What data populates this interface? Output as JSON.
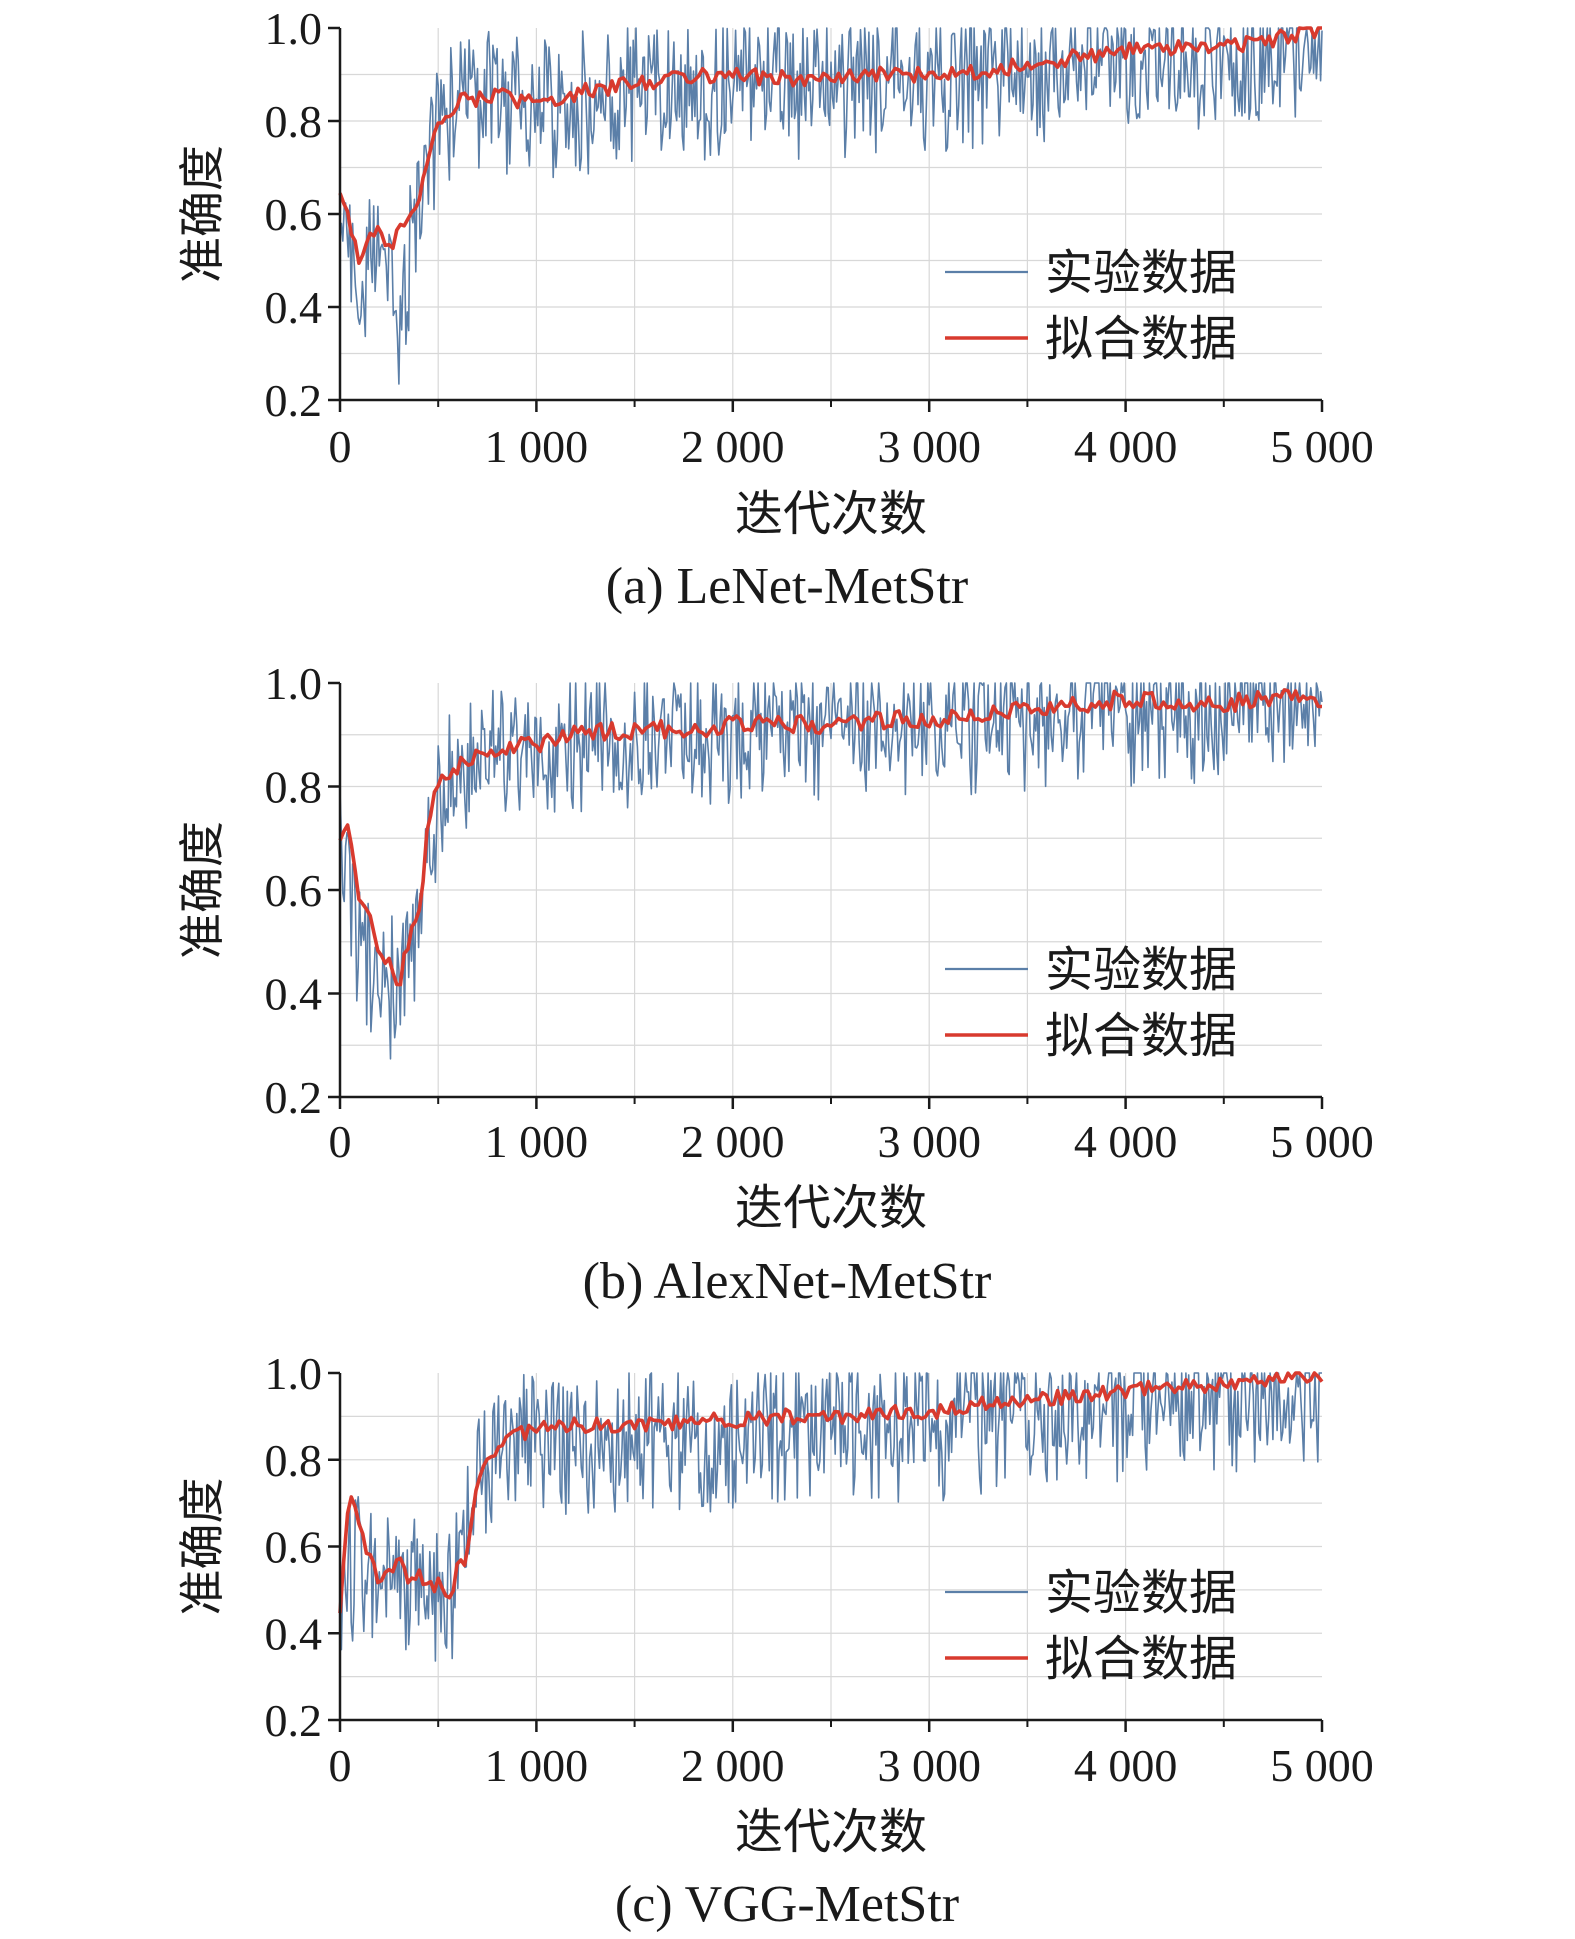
{
  "chart_data": [
    {
      "type": "line",
      "caption": "(a) LeNet-MetStr",
      "xlabel": "迭代次数",
      "ylabel": "准确度",
      "xlim": [
        0,
        5000
      ],
      "ylim": [
        0.2,
        1.0
      ],
      "x_ticks": [
        0,
        1000,
        2000,
        3000,
        4000,
        5000
      ],
      "x_tick_labels": [
        "0",
        "1 000",
        "2 000",
        "3 000",
        "4 000",
        "5 000"
      ],
      "y_ticks": [
        0.2,
        0.4,
        0.6,
        0.8,
        1.0
      ],
      "y_tick_labels": [
        "0.2",
        "0.4",
        "0.6",
        "0.8",
        "1.0"
      ],
      "grid": true,
      "legend_position": "bottom-right",
      "colors": {
        "experiment": "#5b7fa8",
        "fit": "#d83a2e"
      },
      "series": [
        {
          "name": "实验数据",
          "style": "thin-noisy",
          "x": [
            0,
            100,
            200,
            300,
            400,
            500,
            600,
            700,
            800,
            1000,
            1200,
            1500,
            2000,
            2500,
            3000,
            3500,
            4000,
            4500,
            5000
          ],
          "y": [
            0.65,
            0.48,
            0.55,
            0.4,
            0.62,
            0.82,
            0.85,
            0.86,
            0.84,
            0.84,
            0.85,
            0.88,
            0.89,
            0.9,
            0.91,
            0.93,
            0.94,
            0.97,
            0.99
          ],
          "noise_low": 0.18,
          "noise_high": 0.12
        },
        {
          "name": "拟合数据",
          "style": "thick",
          "x": [
            0,
            50,
            100,
            150,
            200,
            250,
            300,
            350,
            400,
            450,
            500,
            600,
            700,
            800,
            900,
            1000,
            1200,
            1500,
            1800,
            2000,
            2300,
            2500,
            2800,
            3000,
            3300,
            3500,
            3800,
            4000,
            4300,
            4500,
            4800,
            5000
          ],
          "y": [
            0.65,
            0.58,
            0.5,
            0.55,
            0.56,
            0.52,
            0.58,
            0.6,
            0.62,
            0.72,
            0.8,
            0.84,
            0.85,
            0.86,
            0.84,
            0.84,
            0.86,
            0.88,
            0.9,
            0.9,
            0.89,
            0.89,
            0.9,
            0.9,
            0.91,
            0.92,
            0.94,
            0.95,
            0.96,
            0.96,
            0.98,
            1.0
          ]
        }
      ]
    },
    {
      "type": "line",
      "caption": "(b) AlexNet-MetStr",
      "xlabel": "迭代次数",
      "ylabel": "准确度",
      "xlim": [
        0,
        5000
      ],
      "ylim": [
        0.2,
        1.0
      ],
      "x_ticks": [
        0,
        1000,
        2000,
        3000,
        4000,
        5000
      ],
      "x_tick_labels": [
        "0",
        "1 000",
        "2 000",
        "3 000",
        "4 000",
        "5 000"
      ],
      "y_ticks": [
        0.2,
        0.4,
        0.6,
        0.8,
        1.0
      ],
      "y_tick_labels": [
        "0.2",
        "0.4",
        "0.6",
        "0.8",
        "1.0"
      ],
      "grid": true,
      "legend_position": "bottom-right",
      "colors": {
        "experiment": "#5b7fa8",
        "fit": "#d83a2e"
      },
      "series": [
        {
          "name": "实验数据",
          "style": "thin-noisy",
          "x": [
            0,
            100,
            200,
            300,
            400,
            500,
            600,
            700,
            800,
            1000,
            1200,
            1500,
            2000,
            2500,
            3000,
            3500,
            4000,
            4500,
            5000
          ],
          "y": [
            0.7,
            0.52,
            0.45,
            0.42,
            0.55,
            0.8,
            0.85,
            0.87,
            0.88,
            0.89,
            0.9,
            0.91,
            0.92,
            0.93,
            0.93,
            0.95,
            0.96,
            0.96,
            0.97
          ],
          "noise_low": 0.16,
          "noise_high": 0.1
        },
        {
          "name": "拟合数据",
          "style": "thick",
          "x": [
            0,
            50,
            100,
            150,
            200,
            250,
            300,
            350,
            400,
            450,
            500,
            600,
            700,
            800,
            900,
            1000,
            1200,
            1500,
            1800,
            2000,
            2300,
            2500,
            2800,
            3000,
            3300,
            3500,
            3800,
            4000,
            4300,
            4500,
            4800,
            5000
          ],
          "y": [
            0.7,
            0.72,
            0.56,
            0.55,
            0.46,
            0.48,
            0.42,
            0.5,
            0.54,
            0.74,
            0.8,
            0.84,
            0.86,
            0.86,
            0.88,
            0.88,
            0.9,
            0.91,
            0.91,
            0.92,
            0.92,
            0.92,
            0.93,
            0.93,
            0.94,
            0.95,
            0.96,
            0.97,
            0.96,
            0.96,
            0.97,
            0.97
          ]
        }
      ]
    },
    {
      "type": "line",
      "caption": "(c) VGG-MetStr",
      "xlabel": "迭代次数",
      "ylabel": "准确度",
      "xlim": [
        0,
        5000
      ],
      "ylim": [
        0.2,
        1.0
      ],
      "x_ticks": [
        0,
        1000,
        2000,
        3000,
        4000,
        5000
      ],
      "x_tick_labels": [
        "0",
        "1 000",
        "2 000",
        "3 000",
        "4 000",
        "5 000"
      ],
      "y_ticks": [
        0.2,
        0.4,
        0.6,
        0.8,
        1.0
      ],
      "y_tick_labels": [
        "0.2",
        "0.4",
        "0.6",
        "0.8",
        "1.0"
      ],
      "grid": true,
      "legend_position": "bottom-right",
      "colors": {
        "experiment": "#5b7fa8",
        "fit": "#d83a2e"
      },
      "series": [
        {
          "name": "实验数据",
          "style": "thin-noisy",
          "x": [
            0,
            100,
            200,
            300,
            400,
            500,
            600,
            700,
            800,
            1000,
            1200,
            1500,
            2000,
            2500,
            3000,
            3500,
            4000,
            4500,
            5000
          ],
          "y": [
            0.55,
            0.6,
            0.52,
            0.54,
            0.52,
            0.5,
            0.55,
            0.8,
            0.85,
            0.86,
            0.87,
            0.88,
            0.88,
            0.9,
            0.9,
            0.93,
            0.95,
            0.97,
            0.99
          ],
          "noise_low": 0.2,
          "noise_high": 0.12
        },
        {
          "name": "拟合数据",
          "style": "thick",
          "x": [
            0,
            50,
            100,
            150,
            200,
            250,
            300,
            350,
            400,
            450,
            500,
            550,
            600,
            650,
            700,
            800,
            900,
            1000,
            1200,
            1500,
            1800,
            2000,
            2300,
            2500,
            2800,
            3000,
            3300,
            3500,
            3800,
            4000,
            4300,
            4500,
            4800,
            5000
          ],
          "y": [
            0.45,
            0.73,
            0.65,
            0.58,
            0.5,
            0.55,
            0.57,
            0.52,
            0.54,
            0.5,
            0.52,
            0.47,
            0.55,
            0.58,
            0.75,
            0.83,
            0.86,
            0.87,
            0.88,
            0.88,
            0.89,
            0.89,
            0.9,
            0.9,
            0.91,
            0.91,
            0.93,
            0.94,
            0.95,
            0.96,
            0.97,
            0.97,
            0.99,
            0.99
          ]
        }
      ]
    }
  ]
}
